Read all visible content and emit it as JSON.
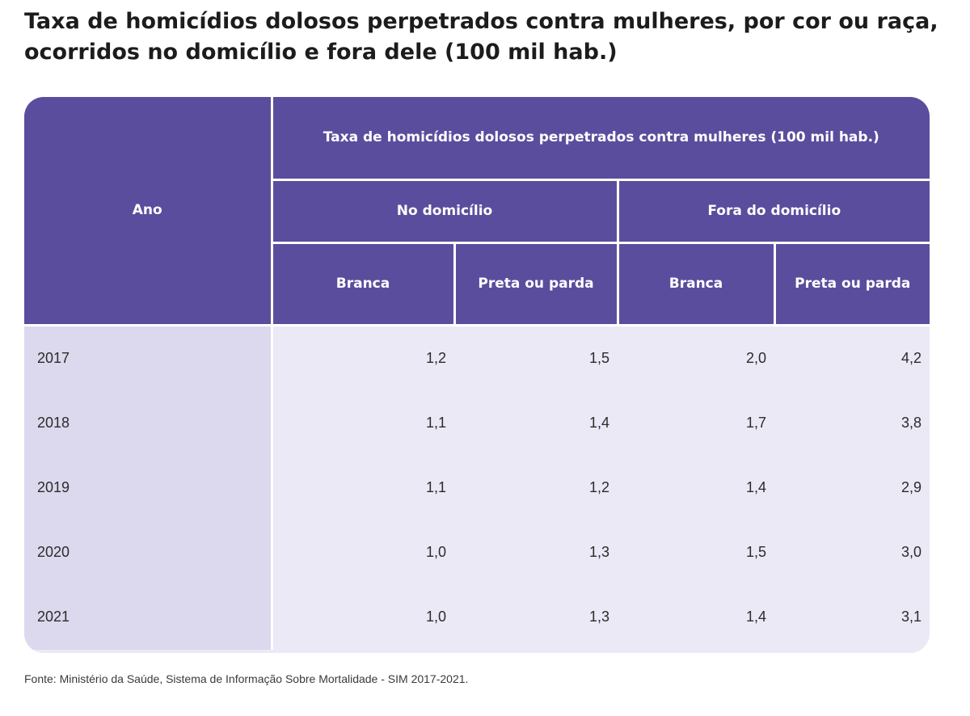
{
  "title": "Taxa de homicídios dolosos perpetrados contra mulheres, por cor ou raça, ocorridos no domicílio e fora dele (100 mil hab.)",
  "table": {
    "year_header": "Ano",
    "super_header": "Taxa de homicídios dolosos perpetrados contra mulheres (100 mil hab.)",
    "group_headers": [
      "No domicílio",
      "Fora do domicílio"
    ],
    "sub_headers": [
      "Branca",
      "Preta ou parda",
      "Branca",
      "Preta ou parda"
    ],
    "rows": [
      {
        "year": "2017",
        "values": [
          "1,2",
          "1,5",
          "2,0",
          "4,2"
        ]
      },
      {
        "year": "2018",
        "values": [
          "1,1",
          "1,4",
          "1,7",
          "3,8"
        ]
      },
      {
        "year": "2019",
        "values": [
          "1,1",
          "1,2",
          "1,4",
          "2,9"
        ]
      },
      {
        "year": "2020",
        "values": [
          "1,0",
          "1,3",
          "1,5",
          "3,0"
        ]
      },
      {
        "year": "2021",
        "values": [
          "1,0",
          "1,3",
          "1,4",
          "3,1"
        ]
      }
    ]
  },
  "source": "Fonte: Ministério da Saúde, Sistema de Informação Sobre Mortalidade - SIM 2017-2021.",
  "colors": {
    "header_bg": "#5b4d9d",
    "body_bg": "#ebe9f6",
    "year_col_bg": "#dcd9ee"
  }
}
